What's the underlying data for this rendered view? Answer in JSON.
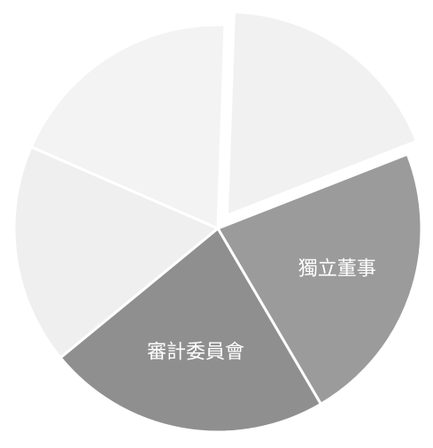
{
  "chart_data": {
    "type": "pie",
    "slices": [
      {
        "label": "",
        "value": 18.5,
        "color": "#f1f1f1",
        "exploded": true
      },
      {
        "label": "獨立董事",
        "value": 22.5,
        "color": "#9b9b9b",
        "exploded": false
      },
      {
        "label": "審計委員會",
        "value": 22.5,
        "color": "#8f8f8f",
        "exploded": false
      },
      {
        "label": "",
        "value": 17.5,
        "color": "#efefef",
        "exploded": false
      },
      {
        "label": "",
        "value": 19.0,
        "color": "#f3f3f3",
        "exploded": false
      }
    ],
    "start_angle_deg": 2,
    "direction": "clockwise",
    "legend": "none",
    "background": "#ffffff"
  }
}
